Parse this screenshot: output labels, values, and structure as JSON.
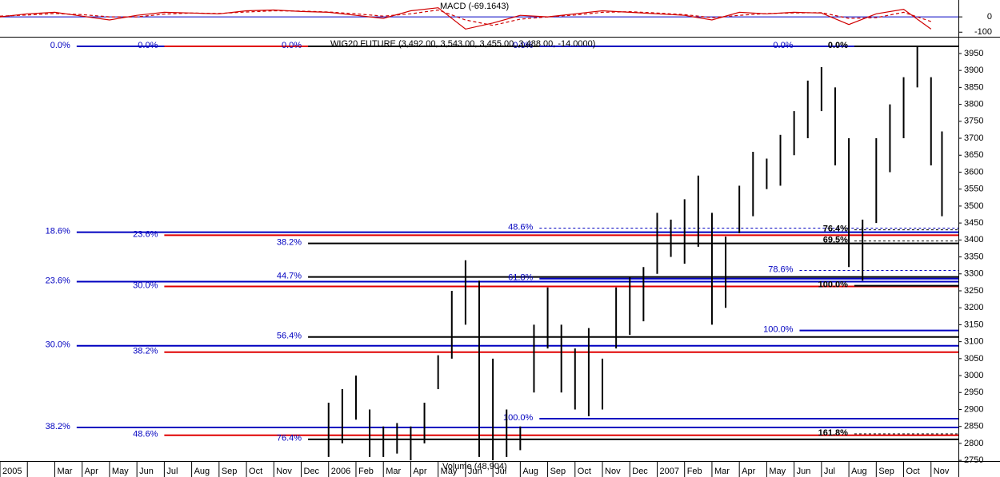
{
  "chart_data": [
    {
      "type": "line",
      "title": "MACD (-69.1643)",
      "x": [
        0,
        1,
        2,
        3,
        4,
        5,
        6,
        7,
        8,
        9,
        10,
        11,
        12,
        13,
        14,
        15,
        16,
        17,
        18,
        19,
        20,
        21,
        22,
        23,
        24,
        25,
        26,
        27,
        28,
        29,
        30,
        31,
        32,
        33,
        34
      ],
      "series": [
        {
          "color": "#d00000",
          "dash": false,
          "values": [
            0,
            20,
            30,
            5,
            -20,
            10,
            30,
            25,
            20,
            40,
            45,
            35,
            30,
            10,
            -10,
            40,
            60,
            -80,
            -40,
            10,
            0,
            20,
            40,
            30,
            20,
            10,
            -20,
            30,
            20,
            30,
            25,
            -50,
            20,
            50,
            -80
          ]
        },
        {
          "color": "#d00000",
          "dash": true,
          "values": [
            5,
            12,
            22,
            15,
            0,
            0,
            18,
            25,
            22,
            32,
            40,
            38,
            32,
            20,
            5,
            20,
            45,
            -20,
            -55,
            -15,
            0,
            12,
            30,
            34,
            25,
            15,
            -5,
            10,
            22,
            26,
            28,
            -10,
            -5,
            30,
            -30
          ]
        }
      ],
      "ylim": [
        -130,
        100
      ],
      "yticks": [
        0,
        -100
      ],
      "zero_line_color": "#0000c0"
    },
    {
      "type": "range",
      "title": "WIG20 FUTURE (3,492.00, 3,543.00, 3,455.00, 3,488.00, -14.0000)",
      "volume_label": "Volume (48,904)",
      "categories": [
        "2005",
        null,
        "Mar",
        "Apr",
        "May",
        "Jun",
        "Jul",
        "Aug",
        "Sep",
        "Oct",
        "Nov",
        "Dec",
        "2006",
        "Feb",
        "Mar",
        "Apr",
        "May",
        "Jun",
        "Jul",
        "Aug",
        "Sep",
        "Oct",
        "Nov",
        "Dec",
        "2007",
        "Feb",
        "Mar",
        "Apr",
        "May",
        "Jun",
        "Jul",
        "Aug",
        "Sep",
        "Oct",
        "Nov"
      ],
      "x": [
        12,
        12.5,
        13,
        13.5,
        14,
        14.5,
        15,
        15.5,
        16,
        16.5,
        17,
        17.5,
        18,
        18.5,
        19,
        19.5,
        20,
        20.5,
        21,
        21.5,
        22,
        22.5,
        23,
        23.5,
        24,
        24.5,
        25,
        25.5,
        26,
        26.5,
        27,
        27.5,
        28,
        28.5,
        29,
        29.5,
        30,
        30.5,
        31,
        31.5,
        32,
        32.5,
        33,
        33.5,
        34,
        34.4
      ],
      "high": [
        2920,
        2960,
        3000,
        2900,
        2850,
        2860,
        2850,
        2920,
        3060,
        3250,
        3340,
        3280,
        3050,
        2900,
        2850,
        3150,
        3260,
        3150,
        3080,
        3140,
        3050,
        3260,
        3290,
        3320,
        3480,
        3460,
        3520,
        3590,
        3480,
        3410,
        3560,
        3660,
        3640,
        3710,
        3780,
        3870,
        3910,
        3850,
        3700,
        3460,
        3700,
        3800,
        3880,
        3970,
        3880,
        3720
      ],
      "low": [
        2760,
        2800,
        2870,
        2760,
        2760,
        2770,
        2750,
        2800,
        2960,
        3050,
        3150,
        2760,
        2750,
        2760,
        2780,
        2950,
        3080,
        2950,
        2900,
        2880,
        2900,
        3080,
        3120,
        3160,
        3300,
        3350,
        3330,
        3380,
        3150,
        3200,
        3420,
        3470,
        3550,
        3560,
        3650,
        3700,
        3780,
        3620,
        3320,
        3280,
        3450,
        3600,
        3700,
        3850,
        3620,
        3470
      ],
      "color": "#000000",
      "ylim": [
        2748,
        3997
      ],
      "yticks": [
        2750,
        2800,
        2850,
        2900,
        2950,
        3000,
        3050,
        3100,
        3150,
        3200,
        3250,
        3300,
        3350,
        3400,
        3450,
        3500,
        3550,
        3600,
        3650,
        3700,
        3750,
        3800,
        3850,
        3900,
        3950
      ],
      "fibonacci": [
        {
          "start": 2.8,
          "color": "#0000c0",
          "label_color": "#0000c0",
          "bold": false,
          "levels": [
            {
              "label": "0.0%",
              "value": 3971
            },
            {
              "label": "18.6%",
              "value": 3423
            },
            {
              "label": "23.6%",
              "value": 3277
            },
            {
              "label": "30.0%",
              "value": 3088
            },
            {
              "label": "38.2%",
              "value": 2847
            }
          ]
        },
        {
          "start": 6.0,
          "color": "#e00000",
          "label_color": "#0000c0",
          "bold": false,
          "levels": [
            {
              "label": "0.0%",
              "value": 3971
            },
            {
              "label": "23.6%",
              "value": 3414
            },
            {
              "label": "30.0%",
              "value": 3263
            },
            {
              "label": "38.2%",
              "value": 3069
            },
            {
              "label": "48.6%",
              "value": 2824
            }
          ]
        },
        {
          "start": 11.25,
          "color": "#000000",
          "label_color": "#0000c0",
          "bold": false,
          "levels": [
            {
              "label": "0.0%",
              "value": 3971
            },
            {
              "label": "38.2%",
              "value": 3390
            },
            {
              "label": "44.7%",
              "value": 3291
            },
            {
              "label": "56.4%",
              "value": 3114
            },
            {
              "label": "76.4%",
              "value": 2812
            }
          ]
        },
        {
          "start": 19.7,
          "color": "#0000c0",
          "label_color": "#0000c0",
          "bold": false,
          "levels": [
            {
              "label": "0.0%",
              "value": 3971
            },
            {
              "label": "48.6%",
              "value": 3435,
              "style": "dashed"
            },
            {
              "label": "61.8%",
              "value": 3286
            },
            {
              "label": "100.0%",
              "value": 2873
            }
          ]
        },
        {
          "start": 29.2,
          "color": "#0000c0",
          "label_color": "#0000c0",
          "bold": false,
          "levels": [
            {
              "label": "0.0%",
              "value": 3971
            },
            {
              "label": "78.6%",
              "value": 3310,
              "style": "dashed"
            },
            {
              "label": "100.0%",
              "value": 3133
            }
          ]
        },
        {
          "start": 31.2,
          "color": "#000000",
          "label_color": "#000000",
          "bold": true,
          "levels": [
            {
              "label": "0.0%",
              "value": 3971
            },
            {
              "label": "76.4%",
              "value": 3430,
              "style": "dashed"
            },
            {
              "label": "69.5%",
              "value": 3397,
              "style": "dashed"
            },
            {
              "label": "100.0%",
              "value": 3265
            },
            {
              "label": "161.8%",
              "value": 2828,
              "style": "dashed"
            }
          ]
        }
      ]
    }
  ]
}
